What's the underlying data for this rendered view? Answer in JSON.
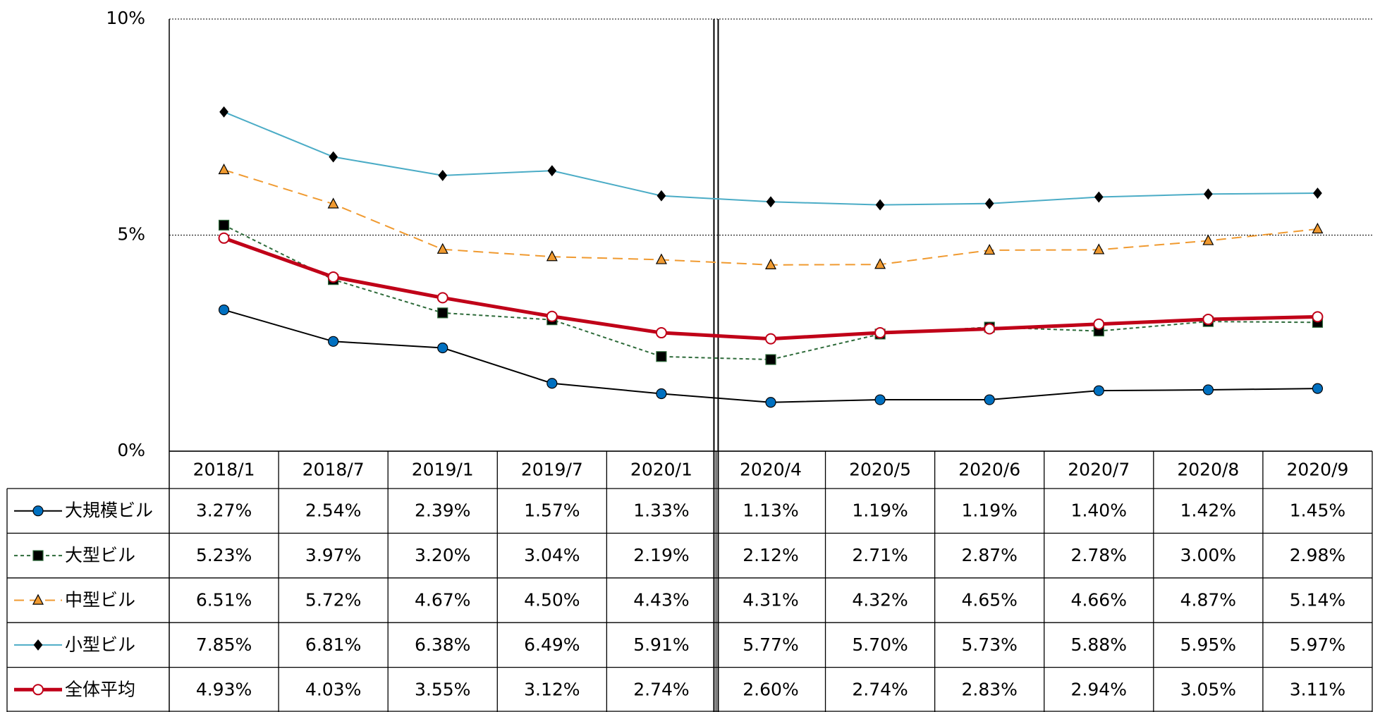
{
  "chart_data": {
    "type": "line",
    "categories": [
      "2018/1",
      "2018/7",
      "2019/1",
      "2019/7",
      "2020/1",
      "2020/4",
      "2020/5",
      "2020/6",
      "2020/7",
      "2020/8",
      "2020/9"
    ],
    "ylim": [
      0,
      10
    ],
    "yticks": [
      {
        "value": 0,
        "label": "0%"
      },
      {
        "value": 5,
        "label": "5%"
      },
      {
        "value": 10,
        "label": "10%"
      }
    ],
    "grid": true,
    "series": [
      {
        "name": "大規模ビル",
        "color": "#000000",
        "marker": "circle",
        "marker_fill": "#0070c0",
        "dash": "solid",
        "values": [
          3.27,
          2.54,
          2.39,
          1.57,
          1.33,
          1.13,
          1.19,
          1.19,
          1.4,
          1.42,
          1.45
        ],
        "value_labels": [
          "3.27%",
          "2.54%",
          "2.39%",
          "1.57%",
          "1.33%",
          "1.13%",
          "1.19%",
          "1.19%",
          "1.40%",
          "1.42%",
          "1.45%"
        ]
      },
      {
        "name": "大型ビル",
        "color": "#2e6b3a",
        "marker": "square",
        "marker_fill": "#000000",
        "dash": "dotted",
        "values": [
          5.23,
          3.97,
          3.2,
          3.04,
          2.19,
          2.12,
          2.71,
          2.87,
          2.78,
          3.0,
          2.98
        ],
        "value_labels": [
          "5.23%",
          "3.97%",
          "3.20%",
          "3.04%",
          "2.19%",
          "2.12%",
          "2.71%",
          "2.87%",
          "2.78%",
          "3.00%",
          "2.98%"
        ]
      },
      {
        "name": "中型ビル",
        "color": "#f09a30",
        "marker": "triangle",
        "marker_fill": "#f09a30",
        "dash": "dashed",
        "values": [
          6.51,
          5.72,
          4.67,
          4.5,
          4.43,
          4.31,
          4.32,
          4.65,
          4.66,
          4.87,
          5.14
        ],
        "value_labels": [
          "6.51%",
          "5.72%",
          "4.67%",
          "4.50%",
          "4.43%",
          "4.31%",
          "4.32%",
          "4.65%",
          "4.66%",
          "4.87%",
          "5.14%"
        ]
      },
      {
        "name": "小型ビル",
        "color": "#4bacc6",
        "marker": "diamond",
        "marker_fill": "#000000",
        "dash": "solid",
        "values": [
          7.85,
          6.81,
          6.38,
          6.49,
          5.91,
          5.77,
          5.7,
          5.73,
          5.88,
          5.95,
          5.97
        ],
        "value_labels": [
          "7.85%",
          "6.81%",
          "6.38%",
          "6.49%",
          "5.91%",
          "5.77%",
          "5.70%",
          "5.73%",
          "5.88%",
          "5.95%",
          "5.97%"
        ]
      },
      {
        "name": "全体平均",
        "color": "#c00018",
        "marker": "circle",
        "marker_fill": "#ffffff",
        "dash": "solid",
        "width": 5,
        "values": [
          4.93,
          4.03,
          3.55,
          3.12,
          2.74,
          2.6,
          2.74,
          2.83,
          2.94,
          3.05,
          3.11
        ],
        "value_labels": [
          "4.93%",
          "4.03%",
          "3.55%",
          "3.12%",
          "2.74%",
          "2.60%",
          "2.74%",
          "2.83%",
          "2.94%",
          "3.05%",
          "3.11%"
        ]
      }
    ]
  }
}
